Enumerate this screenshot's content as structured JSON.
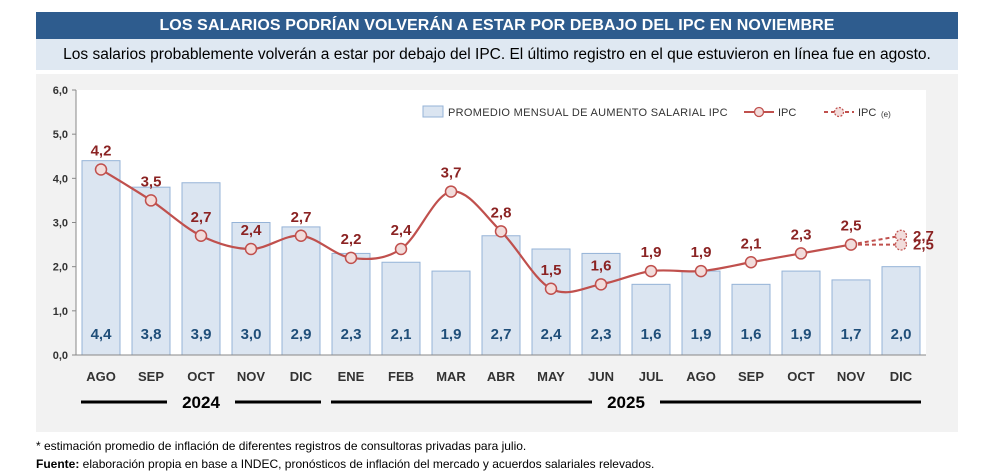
{
  "header": {
    "title": "LOS SALARIOS PODRÍAN VOLVERÁN A ESTAR POR DEBAJO DEL IPC EN NOVIEMBRE",
    "subtitle": "Los salarios probablemente volverán a estar por debajo del IPC. El último registro en el que estuvieron en línea fue en agosto."
  },
  "chart_data": {
    "type": "bar",
    "categories": [
      "AGO",
      "SEP",
      "OCT",
      "NOV",
      "DIC",
      "ENE",
      "FEB",
      "MAR",
      "ABR",
      "MAY",
      "JUN",
      "JUL",
      "AGO",
      "SEP",
      "OCT",
      "NOV",
      "DIC"
    ],
    "ylim": [
      0,
      6
    ],
    "yticks": [
      "0,0",
      "1,0",
      "2,0",
      "3,0",
      "4,0",
      "5,0",
      "6,0"
    ],
    "series": [
      {
        "name": "PROMEDIO MENSUAL DE AUMENTO SALARIAL IPC",
        "type": "bar",
        "values": [
          4.4,
          3.8,
          3.9,
          3.0,
          2.9,
          2.3,
          2.1,
          1.9,
          2.7,
          2.4,
          2.3,
          1.6,
          1.9,
          1.6,
          1.9,
          1.7,
          2.0
        ],
        "labels": [
          "4,4",
          "3,8",
          "3,9",
          "3,0",
          "2,9",
          "2,3",
          "2,1",
          "1,9",
          "2,7",
          "2,4",
          "2,3",
          "1,6",
          "1,9",
          "1,6",
          "1,9",
          "1,7",
          "2,0"
        ]
      },
      {
        "name": "IPC",
        "type": "line",
        "values": [
          4.2,
          3.5,
          2.7,
          2.4,
          2.7,
          2.2,
          2.4,
          3.7,
          2.8,
          1.5,
          1.6,
          1.9,
          1.9,
          2.1,
          2.3,
          2.5,
          null
        ],
        "labels": [
          "4,2",
          "3,5",
          "2,7",
          "2,4",
          "2,7",
          "2,2",
          "2,4",
          "3,7",
          "2,8",
          "1,5",
          "1,6",
          "1,9",
          "1,9",
          "2,1",
          "2,3",
          "2,5",
          ""
        ]
      },
      {
        "name": "IPC",
        "suffix": "(e)",
        "type": "line-dashed",
        "points": [
          {
            "category_index": 15,
            "value": 2.5
          },
          {
            "category_index": 16,
            "value": 2.7,
            "label": "2,7"
          },
          {
            "category_index": 15,
            "value": 2.5
          },
          {
            "category_index": 16,
            "value": 2.5,
            "label": "2,5"
          }
        ]
      }
    ],
    "years": [
      {
        "label": "2024",
        "from": 0,
        "to": 4
      },
      {
        "label": "2025",
        "from": 5,
        "to": 16
      }
    ],
    "legend_position": "top-right",
    "colors": {
      "bar_fill": "#dbe5f1",
      "bar_stroke": "#95b3d7",
      "bar_label": "#1f4e79",
      "line": "#c0504d",
      "marker_fill": "#f2dcdb",
      "point_label": "#8b2323"
    }
  },
  "footnotes": {
    "estimate": "* estimación promedio de inflación de diferentes registros de consultoras privadas para julio.",
    "source_label": "Fuente:",
    "source_text": " elaboración propia en base a INDEC, pronósticos de inflación del mercado y acuerdos salariales relevados."
  }
}
